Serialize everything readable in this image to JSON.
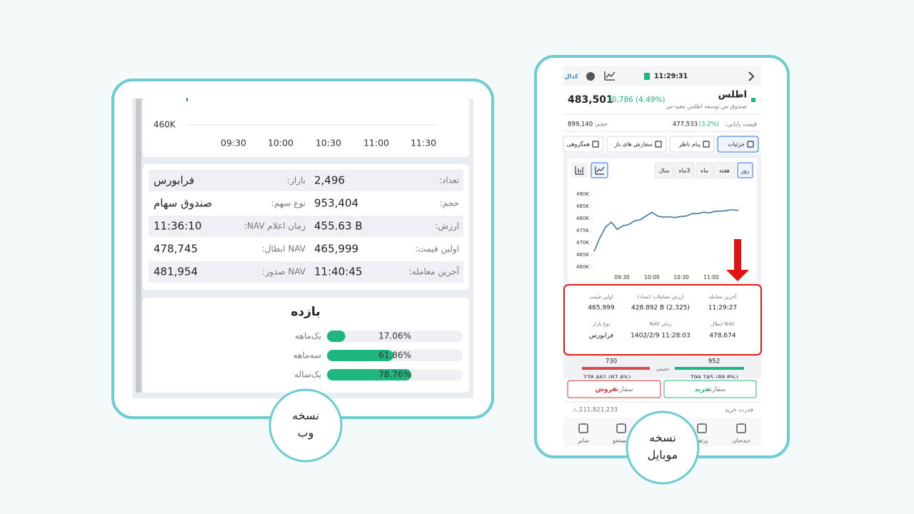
{
  "web": {
    "chart": {
      "yticks": [
        {
          "value": 460000,
          "label": "460K"
        }
      ],
      "xticks": [
        "09:30",
        "10:00",
        "10:30",
        "11:00",
        "11:30"
      ]
    },
    "details": {
      "rows": [
        [
          "تعداد:",
          "2,496",
          "بازار:",
          "فرابورس"
        ],
        [
          "حجم:",
          "953,404",
          "نوع سهم:",
          "صندوق سهام"
        ],
        [
          "ارزش:",
          "455.63 B",
          "زمان اعلام NAV:",
          "11:36:10"
        ],
        [
          "اولین قیمت:",
          "465,999",
          "NAV ابطال:",
          "478,745"
        ],
        [
          "آخرین معامله:",
          "11:40:45",
          "NAV صدور:",
          "481,954"
        ]
      ]
    },
    "returns": {
      "title": "بازده",
      "categories": [
        "یک‌ماهه",
        "سه‌ماهه",
        "یک‌ساله"
      ],
      "values": [
        17.06,
        61.86,
        78.76
      ],
      "value_labels": [
        "17.06%",
        "61.86%",
        "78.76%"
      ]
    },
    "badge": [
      "نسخه",
      "وب"
    ]
  },
  "mobile": {
    "logo": "کدال",
    "time": "11:29:31",
    "name": "اطلس",
    "subtitle": "صندوق س.توسعه اطلس مفید-س",
    "price": "483,501",
    "change": "20,786 (4.49%)",
    "close_label": "قیمت پایانی:",
    "close": "477,533",
    "close_change": "(3.2%)",
    "volume_label": "حجم:",
    "volume": "899,140",
    "tabs": [
      "جزئیات",
      "پیام ناظر",
      "سفارش های باز",
      "همگروهی"
    ],
    "periods": [
      "روز",
      "هفته",
      "ماه",
      "3ماه",
      "سال"
    ],
    "chart": {
      "type": "line",
      "color": "#3f78a6",
      "values": [
        466500,
        472000,
        476500,
        478500,
        475500,
        477000,
        477500,
        479000,
        479500,
        481000,
        482500,
        481000,
        480500,
        480700,
        480400,
        480800,
        481000,
        482000,
        482000,
        482600,
        482300,
        483000,
        483000,
        483300,
        483600,
        483300
      ],
      "ylim": [
        460000,
        490000
      ],
      "yticks": [
        {
          "value": 490000,
          "label": "490K"
        },
        {
          "value": 485000,
          "label": "485K"
        },
        {
          "value": 480000,
          "label": "480K"
        },
        {
          "value": 475000,
          "label": "475K"
        },
        {
          "value": 470000,
          "label": "470K"
        },
        {
          "value": 465000,
          "label": "465K"
        },
        {
          "value": 460000,
          "label": "460K"
        }
      ],
      "xticks": [
        "09:30",
        "10:00",
        "10:30",
        "11:00"
      ]
    },
    "details": [
      {
        "label": "آخرین معامله",
        "value": "11:29:27"
      },
      {
        "label": "ارزش معاملات (تعداد)",
        "value": "428.892 B (2,325)"
      },
      {
        "label": "اولین قیمت",
        "value": "465,999"
      },
      {
        "label": "NAV ابطال",
        "value": "478,674"
      },
      {
        "label": "زمان NAV",
        "value": "1402/2/9 11:28:03"
      },
      {
        "label": "نوع بازار",
        "value": "فرابورس"
      }
    ],
    "orderbook": {
      "buy_count": "952",
      "sell_count": "730",
      "label": "حقیقی",
      "buy_volume": "799,745 (88.8%)",
      "sell_volume": "778,461 (87.4%)"
    },
    "buy_button": [
      "سفارش",
      "خرید"
    ],
    "sell_button": [
      "سفارش",
      "فروش"
    ],
    "power_label": "قدرت خرید",
    "power_value": "111,821,233",
    "power_unit": "ریال",
    "nav": [
      "دیده‌بان",
      "پرتفو",
      "جستجو",
      "سایر"
    ],
    "badge": [
      "نسخه",
      "موبایل"
    ]
  }
}
